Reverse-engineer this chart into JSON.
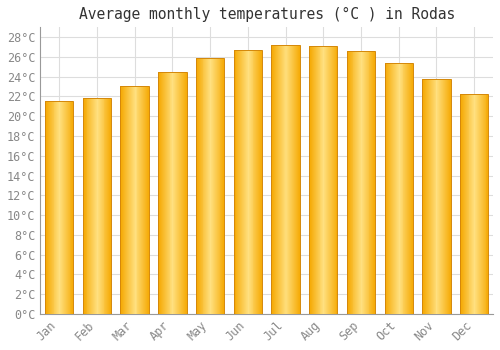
{
  "title": "Average monthly temperatures (°C ) in Rodas",
  "months": [
    "Jan",
    "Feb",
    "Mar",
    "Apr",
    "May",
    "Jun",
    "Jul",
    "Aug",
    "Sep",
    "Oct",
    "Nov",
    "Dec"
  ],
  "values": [
    21.5,
    21.8,
    23.1,
    24.5,
    25.9,
    26.7,
    27.2,
    27.1,
    26.6,
    25.4,
    23.8,
    22.3
  ],
  "bar_color_center": "#FFE066",
  "bar_color_edge": "#F5A800",
  "background_color": "#FFFFFF",
  "plot_bg_color": "#FFFFFF",
  "grid_color": "#DDDDDD",
  "ylim": [
    0,
    29
  ],
  "ytick_step": 2,
  "title_fontsize": 10.5,
  "tick_fontsize": 8.5,
  "label_color": "#888888",
  "title_color": "#333333",
  "bar_width": 0.75
}
